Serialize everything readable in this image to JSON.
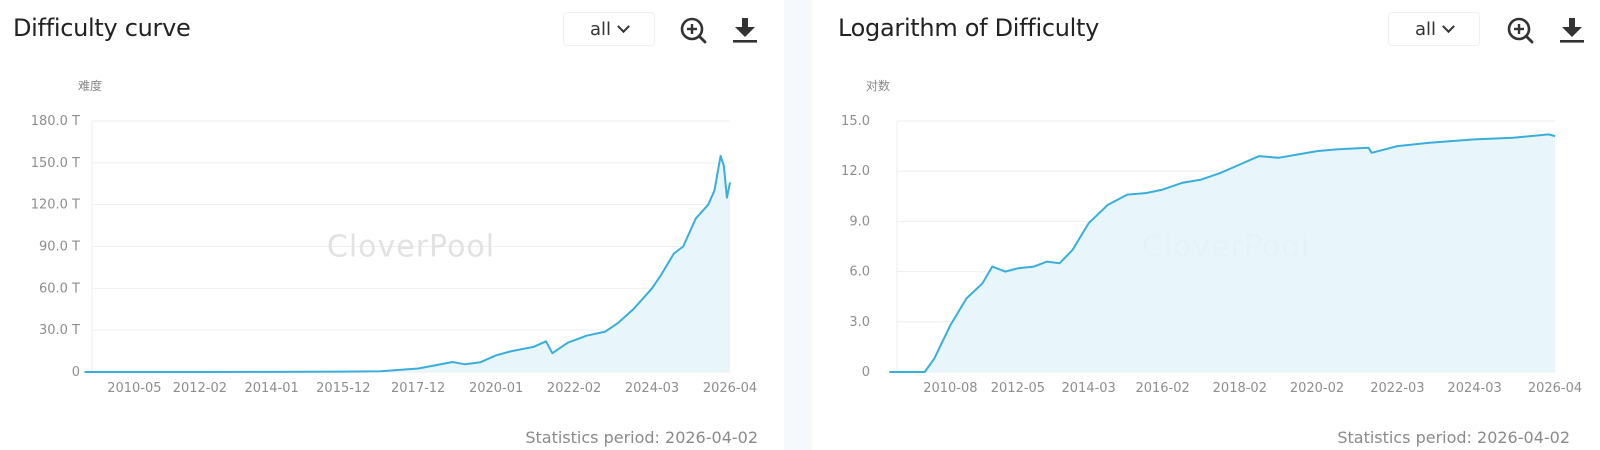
{
  "theme": {
    "line_color": "#3aaedb",
    "fill_color": "#e6f5fb",
    "grid_color": "#eeeeee",
    "text_color": "#222222",
    "tick_color": "#8e8e8e"
  },
  "panels": [
    {
      "title": "Difficulty curve",
      "range_select": {
        "value": "all"
      },
      "icons": {
        "zoom": "zoom-in-icon",
        "download": "download-icon"
      },
      "y_unit": "难度",
      "watermark": "CloverPool",
      "footer": "Statistics period: 2026-04-02"
    },
    {
      "title": "Logarithm of Difficulty",
      "range_select": {
        "value": "all"
      },
      "icons": {
        "zoom": "zoom-in-icon",
        "download": "download-icon"
      },
      "y_unit": "对数",
      "watermark": "CloverPool",
      "footer": "Statistics period: 2026-04-02"
    }
  ],
  "chart_data": [
    {
      "type": "area",
      "title": "Difficulty curve",
      "xlabel": "",
      "ylabel": "难度",
      "ylim": [
        0,
        180
      ],
      "y_unit_suffix": "T",
      "y_ticks": [
        "0",
        "30.0 T",
        "60.0 T",
        "90.0 T",
        "120.0 T",
        "150.0 T",
        "180.0 T"
      ],
      "x_ticks": [
        "2010-05",
        "2012-02",
        "2014-01",
        "2015-12",
        "2017-12",
        "2020-01",
        "2022-02",
        "2024-03",
        "2026-04"
      ],
      "grid": true,
      "legend": "none",
      "x": [
        "2009-01",
        "2010-05",
        "2012-02",
        "2014-01",
        "2015-12",
        "2016-12",
        "2017-12",
        "2018-06",
        "2018-11",
        "2019-03",
        "2019-08",
        "2020-01",
        "2020-06",
        "2021-01",
        "2021-05",
        "2021-07",
        "2021-12",
        "2022-06",
        "2022-12",
        "2023-04",
        "2023-09",
        "2024-01",
        "2024-03",
        "2024-06",
        "2024-10",
        "2025-01",
        "2025-05",
        "2025-09",
        "2025-11",
        "2026-01",
        "2026-02",
        "2026-03",
        "2026-04"
      ],
      "values": [
        0,
        0,
        0,
        0.1,
        0.3,
        0.5,
        2.5,
        5,
        7.2,
        5.5,
        7,
        12,
        15,
        18,
        22,
        13.5,
        21,
        26,
        29,
        35,
        45,
        55,
        60,
        70,
        85,
        90,
        110,
        120,
        130,
        155,
        148,
        125,
        136
      ]
    },
    {
      "type": "area",
      "title": "Logarithm of Difficulty",
      "xlabel": "",
      "ylabel": "对数",
      "ylim": [
        0,
        15
      ],
      "y_ticks": [
        "0",
        "3.0",
        "6.0",
        "9.0",
        "12.0",
        "15.0"
      ],
      "x_ticks": [
        "2010-08",
        "2012-05",
        "2014-03",
        "2016-02",
        "2018-02",
        "2020-02",
        "2022-03",
        "2024-03",
        "2026-04"
      ],
      "grid": true,
      "legend": "none",
      "x": [
        "2009-01",
        "2009-12",
        "2010-03",
        "2010-08",
        "2011-01",
        "2011-06",
        "2011-09",
        "2012-01",
        "2012-05",
        "2012-10",
        "2013-02",
        "2013-06",
        "2013-10",
        "2014-03",
        "2014-09",
        "2015-03",
        "2015-09",
        "2016-02",
        "2016-08",
        "2017-02",
        "2017-08",
        "2018-02",
        "2018-08",
        "2019-02",
        "2019-08",
        "2020-02",
        "2020-08",
        "2021-06",
        "2021-07",
        "2022-03",
        "2023-01",
        "2024-03",
        "2025-03",
        "2026-02",
        "2026-04"
      ],
      "values": [
        0,
        0,
        0.8,
        2.8,
        4.4,
        5.3,
        6.3,
        6.0,
        6.2,
        6.3,
        6.6,
        6.5,
        7.3,
        8.9,
        10.0,
        10.6,
        10.7,
        10.9,
        11.3,
        11.5,
        11.9,
        12.4,
        12.9,
        12.8,
        13.0,
        13.2,
        13.3,
        13.4,
        13.1,
        13.5,
        13.7,
        13.9,
        14.0,
        14.2,
        14.1
      ]
    }
  ]
}
